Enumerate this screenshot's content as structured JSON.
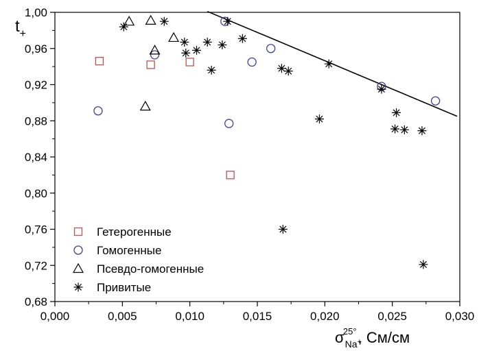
{
  "chart_data": {
    "type": "scatter",
    "title": "",
    "xlabel": {
      "base": "σ",
      "sub": "Na",
      "sub_sup": "+",
      "sup": "25°",
      "unit": ", См/см"
    },
    "ylabel": {
      "base": "t",
      "sub": "+"
    },
    "xlim": [
      0.0,
      0.03
    ],
    "ylim": [
      0.68,
      1.0
    ],
    "x_ticks": [
      "0,000",
      "0,005",
      "0,010",
      "0,015",
      "0,020",
      "0,025",
      "0,030"
    ],
    "y_ticks": [
      "0,68",
      "0,72",
      "0,76",
      "0,80",
      "0,84",
      "0,88",
      "0,92",
      "0,96",
      "1,00"
    ],
    "grid": false,
    "legend_position": "bottom-left",
    "series": [
      {
        "name": "Гетерогенные",
        "marker": "square",
        "color": "#c0504d",
        "points": [
          [
            0.0033,
            0.946
          ],
          [
            0.0071,
            0.942
          ],
          [
            0.01,
            0.945
          ],
          [
            0.013,
            0.82
          ]
        ]
      },
      {
        "name": "Гомогенные",
        "marker": "circle",
        "color": "#3c3ca0",
        "points": [
          [
            0.0032,
            0.891
          ],
          [
            0.0074,
            0.953
          ],
          [
            0.0126,
            0.99
          ],
          [
            0.0129,
            0.877
          ],
          [
            0.0146,
            0.945
          ],
          [
            0.016,
            0.96
          ],
          [
            0.0242,
            0.918
          ],
          [
            0.0282,
            0.902
          ]
        ]
      },
      {
        "name": "Псевдо-гомогенные",
        "marker": "triangle",
        "color": "#000000",
        "points": [
          [
            0.0055,
            0.99
          ],
          [
            0.0067,
            0.896
          ],
          [
            0.0071,
            0.991
          ],
          [
            0.0074,
            0.958
          ],
          [
            0.0088,
            0.972
          ]
        ]
      },
      {
        "name": "Привитые",
        "marker": "asterisk",
        "color": "#000000",
        "points": [
          [
            0.0051,
            0.984
          ],
          [
            0.0081,
            0.99
          ],
          [
            0.0096,
            0.967
          ],
          [
            0.0097,
            0.955
          ],
          [
            0.0105,
            0.958
          ],
          [
            0.0113,
            0.967
          ],
          [
            0.0116,
            0.936
          ],
          [
            0.0124,
            0.964
          ],
          [
            0.0128,
            0.99
          ],
          [
            0.0139,
            0.971
          ],
          [
            0.0168,
            0.938
          ],
          [
            0.0169,
            0.76
          ],
          [
            0.0173,
            0.935
          ],
          [
            0.0196,
            0.882
          ],
          [
            0.0203,
            0.943
          ],
          [
            0.0242,
            0.915
          ],
          [
            0.0252,
            0.871
          ],
          [
            0.0253,
            0.889
          ],
          [
            0.0259,
            0.87
          ],
          [
            0.0272,
            0.869
          ],
          [
            0.0273,
            0.721
          ]
        ]
      }
    ],
    "trendline": {
      "x": [
        0.0113,
        0.0298
      ],
      "y": [
        1.001,
        0.885
      ],
      "color": "#000000"
    }
  }
}
